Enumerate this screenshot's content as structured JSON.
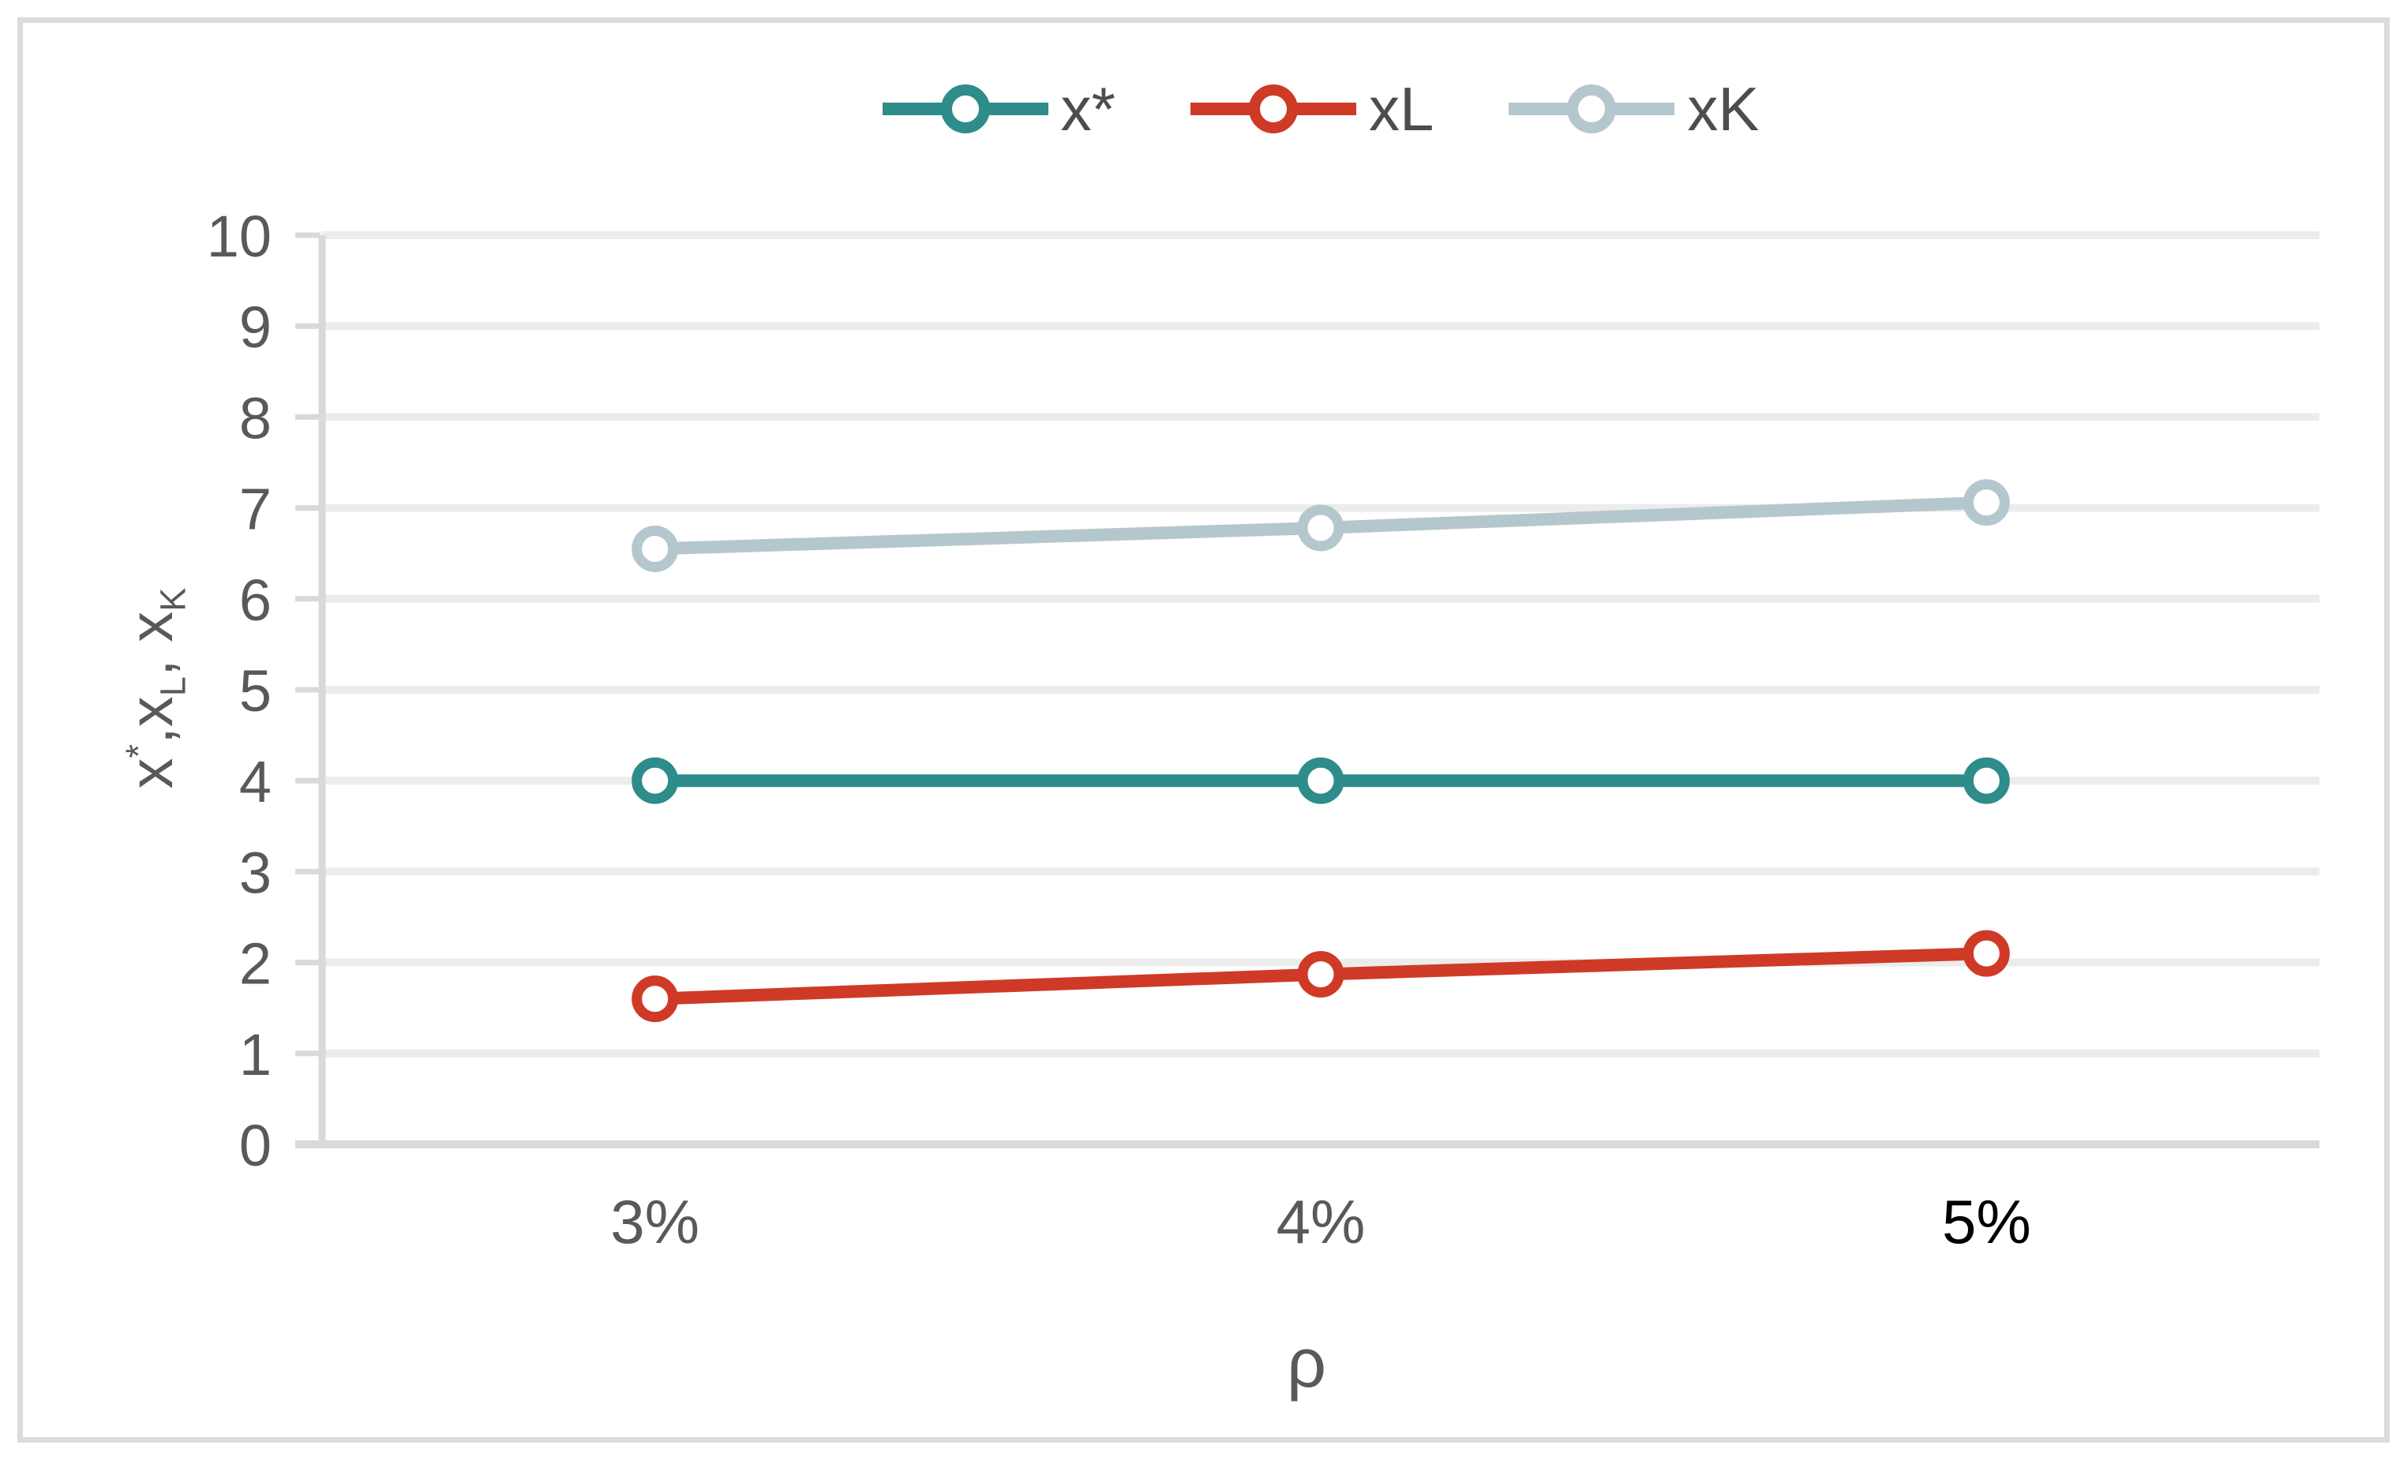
{
  "figure": {
    "background": "#FFFFFF",
    "border_color": "#DCDCDC"
  },
  "legend": {
    "position": "top-center",
    "items": [
      {
        "label": "x*",
        "color": "#2E8C8A"
      },
      {
        "label": "xL",
        "color": "#CF3A27"
      },
      {
        "label": "xK",
        "color": "#B5C7CE"
      }
    ]
  },
  "chart_data": {
    "type": "line",
    "title": "",
    "categories": [
      "3%",
      "4%",
      "5%"
    ],
    "series": [
      {
        "name": "x*",
        "color": "#2E8C8A",
        "values": [
          4.0,
          4.0,
          4.0
        ]
      },
      {
        "name": "xL",
        "color": "#CF3A27",
        "values": [
          1.6,
          1.87,
          2.1
        ]
      },
      {
        "name": "xK",
        "color": "#B5C7CE",
        "values": [
          6.55,
          6.78,
          7.06
        ]
      }
    ],
    "xlabel": "ρ",
    "ylabel": "x*, xL, xK",
    "ylabel_rich": [
      {
        "t": "x"
      },
      {
        "t": "*",
        "style": "sup"
      },
      {
        "t": ","
      },
      {
        "t": "x"
      },
      {
        "t": "L",
        "style": "sub"
      },
      {
        "t": ", "
      },
      {
        "t": "x"
      },
      {
        "t": "K",
        "style": "sub"
      }
    ],
    "ylim": [
      0,
      10
    ],
    "ytick_step": 1,
    "yticks": [
      "0",
      "1",
      "2",
      "3",
      "4",
      "5",
      "6",
      "7",
      "8",
      "9",
      "10"
    ],
    "ytick_label_color": "#595959",
    "xtick_label_colors": [
      "#595959",
      "#595959",
      "#000000"
    ],
    "grid": true,
    "gridline_color": "#ECECEC",
    "axis_line_color": "#D9D9D9",
    "marker": "open-circle",
    "legend_position": "top-center"
  }
}
